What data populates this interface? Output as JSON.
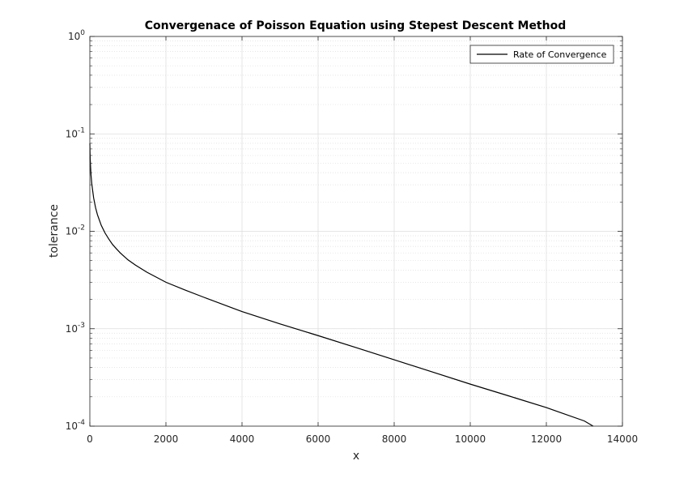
{
  "chart_data": {
    "type": "line",
    "title": "Convergenace of Poisson Equation using Stepest Descent Method",
    "xlabel": "x",
    "ylabel": "tolerance",
    "xlim": [
      0,
      14000
    ],
    "ylim": [
      0.0001,
      1
    ],
    "yscale": "log",
    "grid": true,
    "minor_grid": true,
    "legend_position": "top-right",
    "x_ticks": [
      0,
      2000,
      4000,
      6000,
      8000,
      10000,
      12000,
      14000
    ],
    "x_tick_labels": [
      "0",
      "2000",
      "4000",
      "6000",
      "8000",
      "10000",
      "12000",
      "14000"
    ],
    "y_ticks": [
      {
        "value": 1,
        "base": "10",
        "exp": "0"
      },
      {
        "value": 0.1,
        "base": "10",
        "exp": "-1"
      },
      {
        "value": 0.01,
        "base": "10",
        "exp": "-2"
      },
      {
        "value": 0.001,
        "base": "10",
        "exp": "-3"
      },
      {
        "value": 0.0001,
        "base": "10",
        "exp": "-4"
      }
    ],
    "colors": {
      "line": "#000000",
      "grid": "#dedede",
      "axes": "#262626"
    },
    "series": [
      {
        "name": "Rate of Convergence",
        "x": [
          0,
          2,
          5,
          10,
          20,
          30,
          50,
          75,
          100,
          150,
          200,
          300,
          400,
          500,
          600,
          700,
          800,
          1000,
          1200,
          1500,
          2000,
          2500,
          3000,
          4000,
          5000,
          6000,
          7000,
          8000,
          9000,
          10000,
          11000,
          12000,
          13000,
          13230
        ],
        "y": [
          0.08,
          0.075,
          0.065,
          0.055,
          0.045,
          0.038,
          0.031,
          0.026,
          0.022,
          0.0175,
          0.0148,
          0.0115,
          0.0096,
          0.0083,
          0.0073,
          0.0066,
          0.006,
          0.0051,
          0.0045,
          0.0038,
          0.003,
          0.0025,
          0.0021,
          0.0015,
          0.00112,
          0.00085,
          0.00064,
          0.00048,
          0.00036,
          0.00027,
          0.000205,
          0.000155,
          0.000113,
          0.0001
        ]
      }
    ]
  }
}
